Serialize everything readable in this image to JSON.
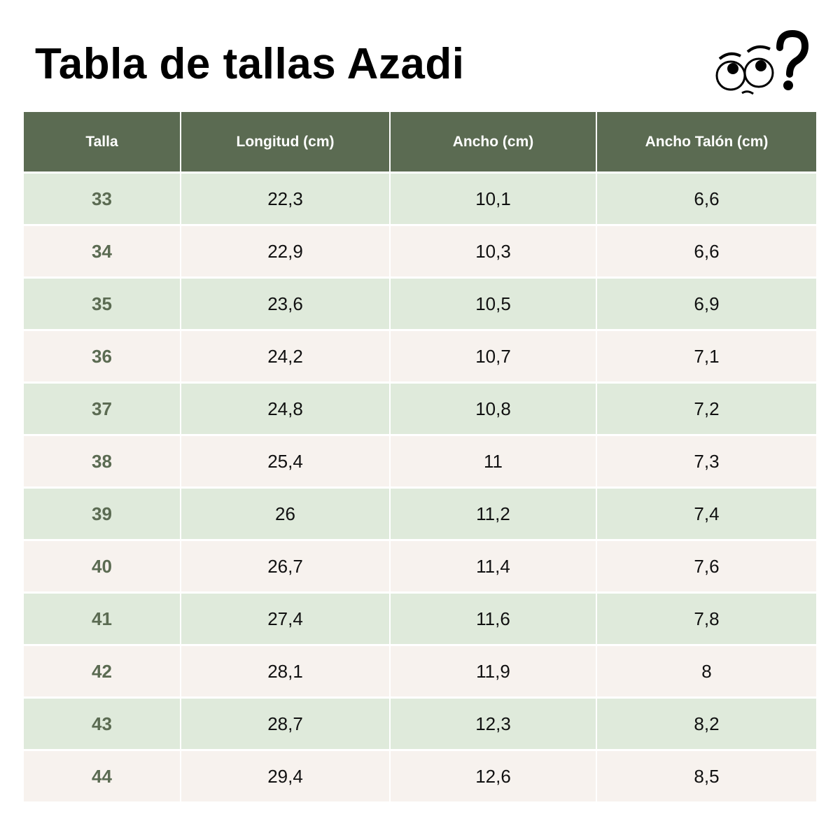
{
  "title": "Tabla de tallas Azadi",
  "icon": "confused-eyes-question-icon",
  "colors": {
    "header_bg": "#5b6b52",
    "row_green": "#dfeadb",
    "row_cream": "#f7f2ee"
  },
  "headers": [
    "Talla",
    "Longitud (cm)",
    "Ancho (cm)",
    "Ancho Talón (cm)"
  ],
  "rows": [
    [
      "33",
      "22,3",
      "10,1",
      "6,6"
    ],
    [
      "34",
      "22,9",
      "10,3",
      "6,6"
    ],
    [
      "35",
      "23,6",
      "10,5",
      "6,9"
    ],
    [
      "36",
      "24,2",
      "10,7",
      "7,1"
    ],
    [
      "37",
      "24,8",
      "10,8",
      "7,2"
    ],
    [
      "38",
      "25,4",
      "11",
      "7,3"
    ],
    [
      "39",
      "26",
      "11,2",
      "7,4"
    ],
    [
      "40",
      "26,7",
      "11,4",
      "7,6"
    ],
    [
      "41",
      "27,4",
      "11,6",
      "7,8"
    ],
    [
      "42",
      "28,1",
      "11,9",
      "8"
    ],
    [
      "43",
      "28,7",
      "12,3",
      "8,2"
    ],
    [
      "44",
      "29,4",
      "12,6",
      "8,5"
    ]
  ]
}
